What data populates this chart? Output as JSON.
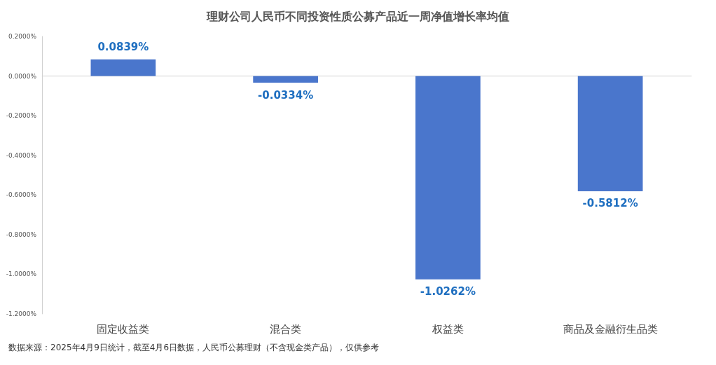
{
  "chart_data": {
    "type": "bar",
    "title": "理财公司人民币不同投资性质公募产品近一周净值增长率均值",
    "categories": [
      "固定收益类",
      "混合类",
      "权益类",
      "商品及金融衍生品类"
    ],
    "values": [
      0.0839,
      -0.0334,
      -1.0262,
      -0.5812
    ],
    "value_labels": [
      "0.0839%",
      "-0.0334%",
      "-1.0262%",
      "-0.5812%"
    ],
    "color": "#4a76cc",
    "ylim": [
      -1.2,
      0.2
    ],
    "yticks": [
      {
        "value": 0.2,
        "label": "0.2000%"
      },
      {
        "value": 0,
        "label": "0.0000%"
      },
      {
        "value": -0.2,
        "label": "-0.2000%"
      },
      {
        "value": -0.4,
        "label": "-0.4000%"
      },
      {
        "value": -0.6,
        "label": "-0.6000%"
      },
      {
        "value": -0.8,
        "label": "-0.8000%"
      },
      {
        "value": -1.0,
        "label": "-1.0000%"
      },
      {
        "value": -1.2,
        "label": "-1.2000%"
      }
    ],
    "annotations": [
      "数据来源：2025年4月9日统计，截至4月6日数据，人民币公募理财（不含现金类产品），仅供参考"
    ]
  }
}
